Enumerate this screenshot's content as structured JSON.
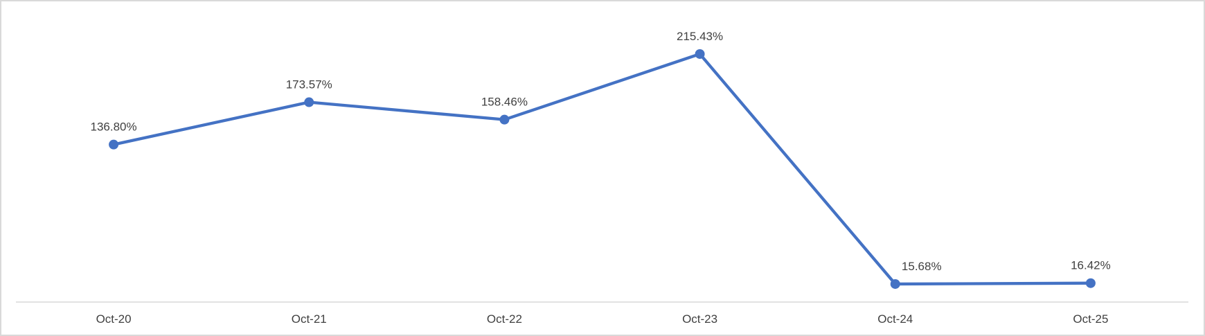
{
  "chart_data": {
    "type": "line",
    "title": "",
    "xlabel": "",
    "ylabel": "",
    "categories": [
      "Oct-20",
      "Oct-21",
      "Oct-22",
      "Oct-23",
      "Oct-24",
      "Oct-25"
    ],
    "series": [
      {
        "name": "Series 1",
        "values": [
          136.8,
          173.57,
          158.46,
          215.43,
          15.68,
          16.42
        ],
        "data_labels": [
          "136.80%",
          "173.57%",
          "158.46%",
          "215.43%",
          "15.68%",
          "16.42%"
        ]
      }
    ],
    "ylim": [
      0,
      250
    ],
    "grid": false,
    "legend": "none",
    "y_axis_labels_visible": false,
    "data_label_position": "above",
    "data_label_x_offsets": [
      0,
      0,
      0,
      0,
      38,
      0
    ],
    "colors": {
      "line": "#4472C4",
      "marker": "#4472C4",
      "data_label_text": "#404040",
      "axis_label_text": "#404040",
      "axis_line": "#D9D9D9",
      "chart_border": "#D9D9D9",
      "background": "#FFFFFF"
    }
  }
}
